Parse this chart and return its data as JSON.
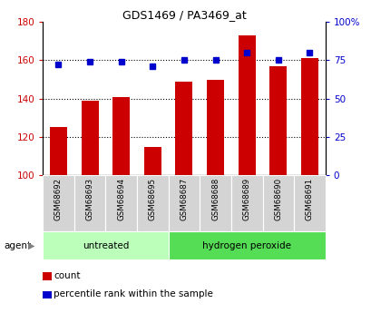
{
  "title": "GDS1469 / PA3469_at",
  "categories": [
    "GSM68692",
    "GSM68693",
    "GSM68694",
    "GSM68695",
    "GSM68687",
    "GSM68688",
    "GSM68689",
    "GSM68690",
    "GSM68691"
  ],
  "bar_values": [
    125,
    139,
    141,
    115,
    149,
    150,
    173,
    157,
    161
  ],
  "scatter_values": [
    72,
    74,
    74,
    71,
    75,
    75,
    80,
    75,
    80
  ],
  "bar_color": "#cc0000",
  "scatter_color": "#0000cc",
  "bar_bottom": 100,
  "ylim_left": [
    100,
    180
  ],
  "ylim_right": [
    0,
    100
  ],
  "yticks_left": [
    100,
    120,
    140,
    160,
    180
  ],
  "yticks_right": [
    0,
    25,
    50,
    75,
    100
  ],
  "ytick_labels_right": [
    "0",
    "25",
    "50",
    "75",
    "100%"
  ],
  "group1_label": "untreated",
  "group2_label": "hydrogen peroxide",
  "group1_color": "#bbffbb",
  "group2_color": "#55dd55",
  "group1_indices": [
    0,
    1,
    2,
    3
  ],
  "group2_indices": [
    4,
    5,
    6,
    7,
    8
  ],
  "legend_count_label": "count",
  "legend_pct_label": "percentile rank within the sample",
  "agent_label": "agent",
  "bar_color_hex": "#cc0000",
  "scatter_color_hex": "#0000cc",
  "bar_width": 0.55,
  "xlabel_color": "#cc0000",
  "ylabel_right_color": "#0000cc"
}
